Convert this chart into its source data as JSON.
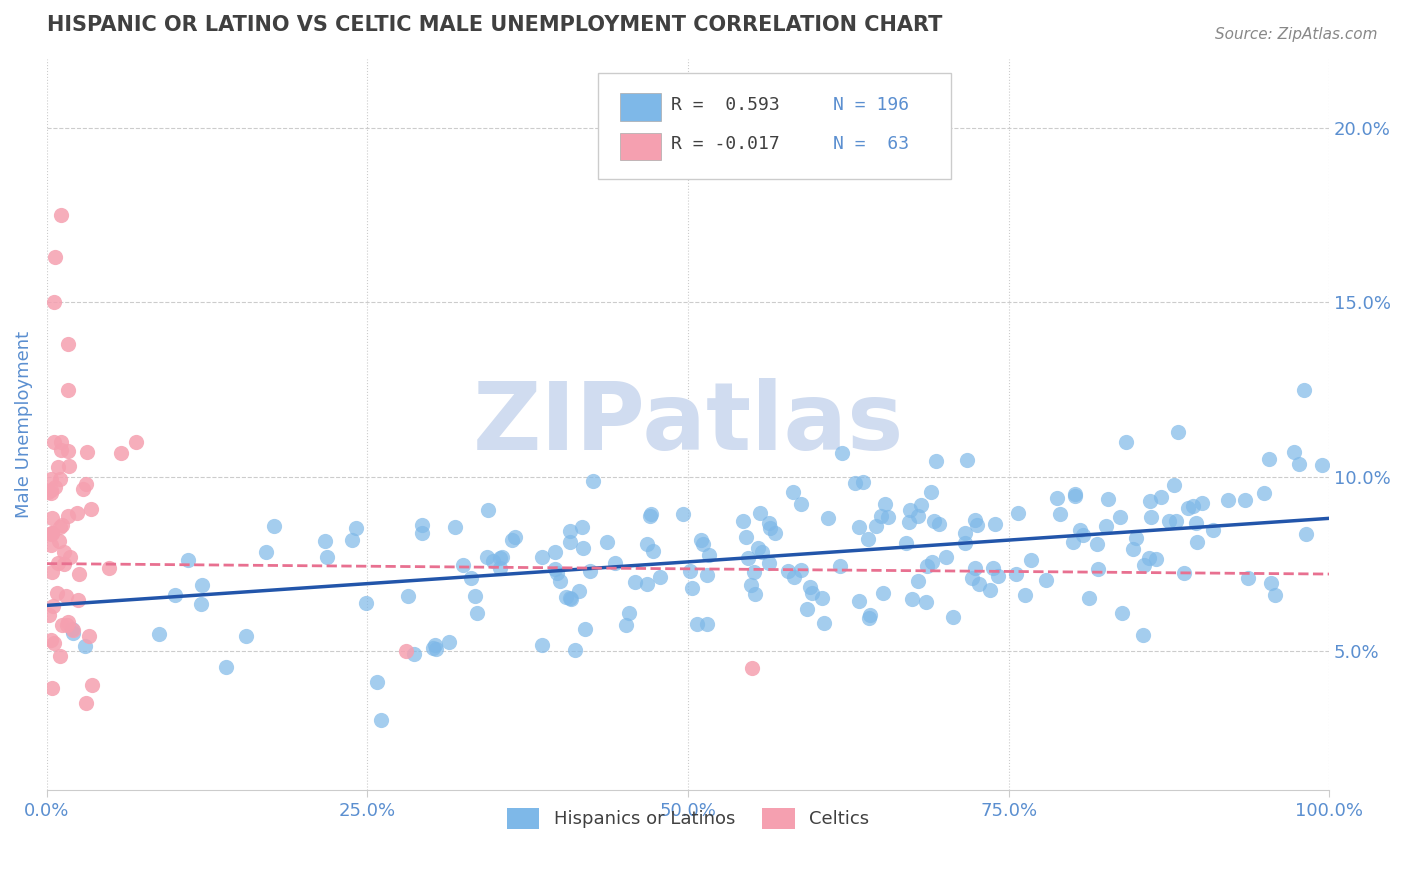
{
  "title": "HISPANIC OR LATINO VS CELTIC MALE UNEMPLOYMENT CORRELATION CHART",
  "source": "Source: ZipAtlas.com",
  "xlabel": "",
  "ylabel": "Male Unemployment",
  "xlim": [
    0,
    1.0
  ],
  "ylim": [
    0.01,
    0.22
  ],
  "yticks": [
    0.05,
    0.1,
    0.15,
    0.2
  ],
  "ytick_labels": [
    "5.0%",
    "10.0%",
    "15.0%",
    "20.0%"
  ],
  "xticks": [
    0.0,
    0.25,
    0.5,
    0.75,
    1.0
  ],
  "xtick_labels": [
    "0.0%",
    "25.0%",
    "50.0%",
    "75.0%",
    "100.0%"
  ],
  "legend_r1": "R =  0.593",
  "legend_n1": "N = 196",
  "legend_r2": "R = -0.017",
  "legend_n2": "N =  63",
  "blue_color": "#7EB8E8",
  "pink_color": "#F5A0B0",
  "blue_line_color": "#2255AA",
  "pink_line_color": "#E87090",
  "watermark": "ZIPatlas",
  "watermark_color": "#D0DCF0",
  "title_color": "#404040",
  "axis_color": "#5B8FD0",
  "blue_trend_x": [
    0.0,
    1.0
  ],
  "blue_trend_y": [
    0.063,
    0.088
  ],
  "pink_trend_x": [
    0.0,
    1.0
  ],
  "pink_trend_y": [
    0.075,
    0.072
  ]
}
